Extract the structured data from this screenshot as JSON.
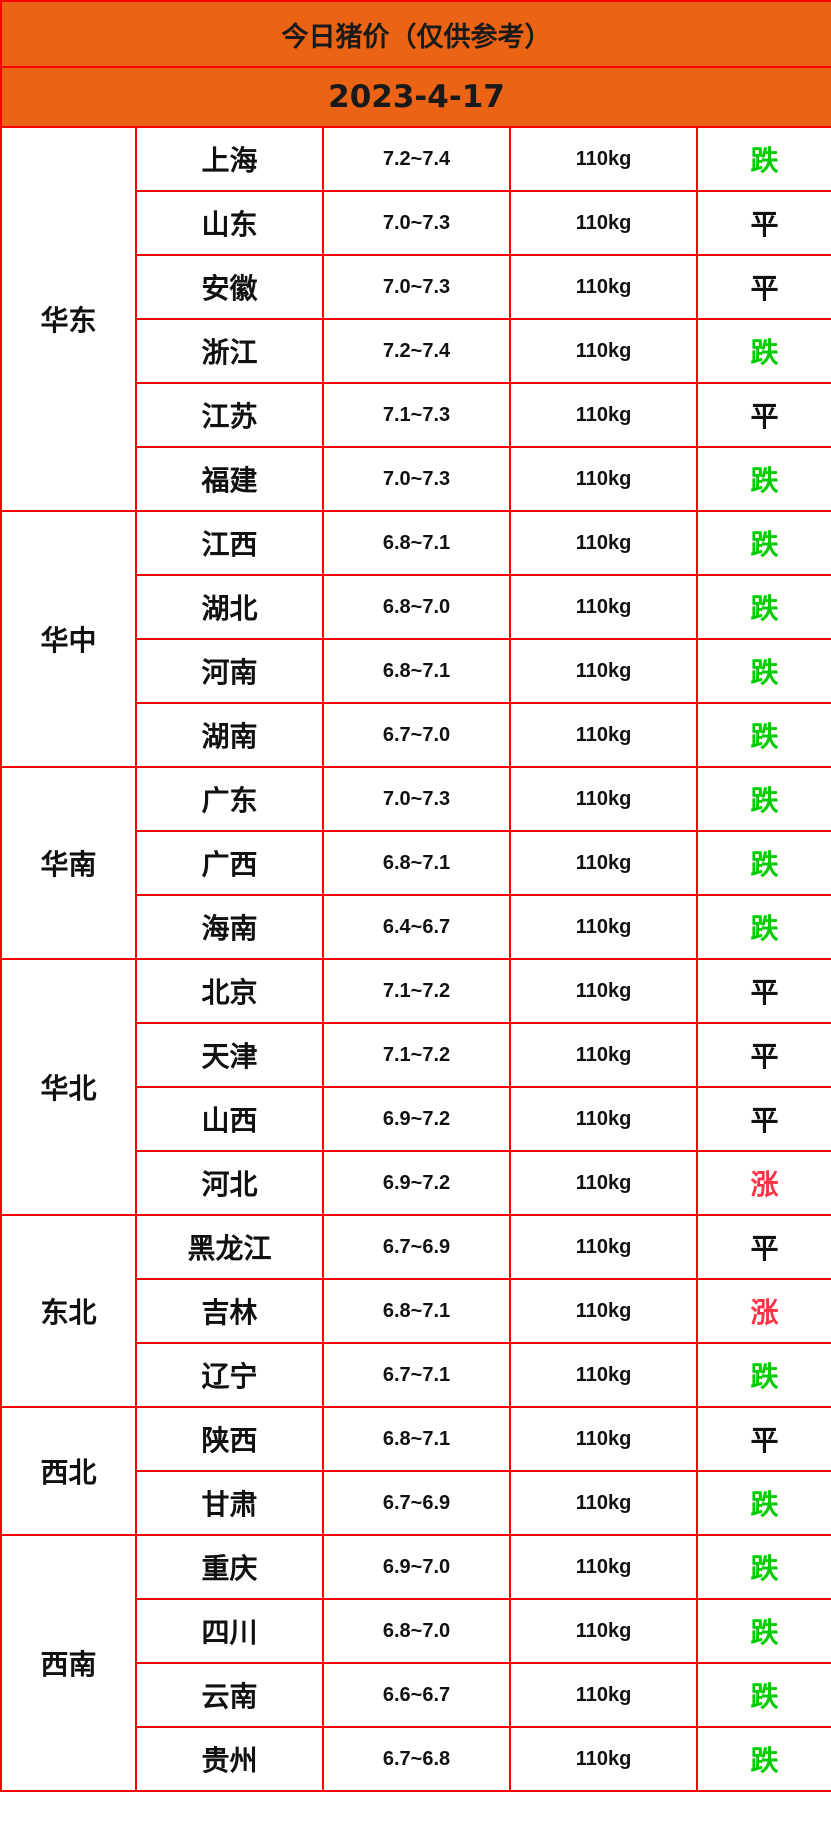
{
  "title": "今日猪价（仅供参考）",
  "date": "2023-4-17",
  "colors": {
    "header_bg": "#eb6315",
    "border": "#ff0000",
    "down": "#00cc00",
    "up": "#ff3344",
    "flat": "#111111"
  },
  "regions": [
    {
      "name": "华东",
      "rows": [
        {
          "province": "上海",
          "price": "7.2~7.4",
          "weight": "110kg",
          "trend": "跌"
        },
        {
          "province": "山东",
          "price": "7.0~7.3",
          "weight": "110kg",
          "trend": "平"
        },
        {
          "province": "安徽",
          "price": "7.0~7.3",
          "weight": "110kg",
          "trend": "平"
        },
        {
          "province": "浙江",
          "price": "7.2~7.4",
          "weight": "110kg",
          "trend": "跌"
        },
        {
          "province": "江苏",
          "price": "7.1~7.3",
          "weight": "110kg",
          "trend": "平"
        },
        {
          "province": "福建",
          "price": "7.0~7.3",
          "weight": "110kg",
          "trend": "跌"
        }
      ]
    },
    {
      "name": "华中",
      "rows": [
        {
          "province": "江西",
          "price": "6.8~7.1",
          "weight": "110kg",
          "trend": "跌"
        },
        {
          "province": "湖北",
          "price": "6.8~7.0",
          "weight": "110kg",
          "trend": "跌"
        },
        {
          "province": "河南",
          "price": "6.8~7.1",
          "weight": "110kg",
          "trend": "跌"
        },
        {
          "province": "湖南",
          "price": "6.7~7.0",
          "weight": "110kg",
          "trend": "跌"
        }
      ]
    },
    {
      "name": "华南",
      "rows": [
        {
          "province": "广东",
          "price": "7.0~7.3",
          "weight": "110kg",
          "trend": "跌"
        },
        {
          "province": "广西",
          "price": "6.8~7.1",
          "weight": "110kg",
          "trend": "跌"
        },
        {
          "province": "海南",
          "price": "6.4~6.7",
          "weight": "110kg",
          "trend": "跌"
        }
      ]
    },
    {
      "name": "华北",
      "rows": [
        {
          "province": "北京",
          "price": "7.1~7.2",
          "weight": "110kg",
          "trend": "平"
        },
        {
          "province": "天津",
          "price": "7.1~7.2",
          "weight": "110kg",
          "trend": "平"
        },
        {
          "province": "山西",
          "price": "6.9~7.2",
          "weight": "110kg",
          "trend": "平"
        },
        {
          "province": "河北",
          "price": "6.9~7.2",
          "weight": "110kg",
          "trend": "涨"
        }
      ]
    },
    {
      "name": "东北",
      "rows": [
        {
          "province": "黑龙江",
          "price": "6.7~6.9",
          "weight": "110kg",
          "trend": "平"
        },
        {
          "province": "吉林",
          "price": "6.8~7.1",
          "weight": "110kg",
          "trend": "涨"
        },
        {
          "province": "辽宁",
          "price": "6.7~7.1",
          "weight": "110kg",
          "trend": "跌"
        }
      ]
    },
    {
      "name": "西北",
      "rows": [
        {
          "province": "陕西",
          "price": "6.8~7.1",
          "weight": "110kg",
          "trend": "平"
        },
        {
          "province": "甘肃",
          "price": "6.7~6.9",
          "weight": "110kg",
          "trend": "跌"
        }
      ]
    },
    {
      "name": "西南",
      "rows": [
        {
          "province": "重庆",
          "price": "6.9~7.0",
          "weight": "110kg",
          "trend": "跌"
        },
        {
          "province": "四川",
          "price": "6.8~7.0",
          "weight": "110kg",
          "trend": "跌"
        },
        {
          "province": "云南",
          "price": "6.6~6.7",
          "weight": "110kg",
          "trend": "跌"
        },
        {
          "province": "贵州",
          "price": "6.7~6.8",
          "weight": "110kg",
          "trend": "跌"
        }
      ]
    }
  ]
}
